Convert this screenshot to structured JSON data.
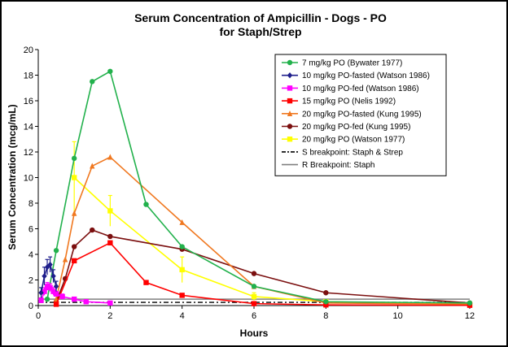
{
  "chart_data": {
    "type": "line",
    "title": "Serum Concentration  of Ampicillin  - Dogs - PO",
    "subtitle": "for Staph/Strep",
    "xlabel": "Hours",
    "ylabel": "Serum Concentration (mcg/mL)",
    "xlim": [
      0,
      12
    ],
    "ylim": [
      0,
      20
    ],
    "xticks": [
      0,
      2,
      4,
      6,
      8,
      10,
      12
    ],
    "yticks": [
      0,
      2,
      4,
      6,
      8,
      10,
      12,
      14,
      16,
      18,
      20
    ],
    "grid": false,
    "legend_position": "top-right",
    "series": [
      {
        "name": "7 mg/kg PO (Bywater 1977)",
        "color": "#22b14c",
        "marker": "circle",
        "x": [
          0.25,
          0.5,
          1,
          1.5,
          2,
          3,
          4,
          6,
          8,
          12
        ],
        "y": [
          0.5,
          4.3,
          11.5,
          17.5,
          18.3,
          7.9,
          4.6,
          1.5,
          0.3,
          0.2
        ]
      },
      {
        "name": "10 mg/kg PO-fasted (Watson 1986)",
        "color": "#1f1f8c",
        "marker": "diamond",
        "x": [
          0.08,
          0.17,
          0.25,
          0.33,
          0.42,
          0.5
        ],
        "y": [
          1.0,
          2.3,
          3.0,
          3.2,
          2.3,
          1.5
        ],
        "err": [
          0.4,
          0.7,
          0.6,
          0.6,
          0.5,
          0.4
        ]
      },
      {
        "name": "10 mg/kg PO-fed (Watson 1986)",
        "color": "#ff00ff",
        "marker": "square",
        "x": [
          0.08,
          0.17,
          0.25,
          0.33,
          0.42,
          0.5,
          0.67,
          1,
          1.33,
          2
        ],
        "y": [
          0.4,
          1.1,
          1.5,
          1.4,
          1.1,
          0.9,
          0.7,
          0.5,
          0.3,
          0.2
        ],
        "err": [
          0.2,
          0.3,
          0.3,
          0.3,
          0.3,
          0.2,
          0.2,
          0.1,
          0.1,
          0.1
        ]
      },
      {
        "name": "15 mg/kg PO (Nelis 1992)",
        "color": "#ff0000",
        "marker": "square",
        "x": [
          0.5,
          1,
          2,
          3,
          4,
          6,
          8,
          12
        ],
        "y": [
          0.1,
          3.5,
          4.9,
          1.8,
          0.8,
          0.15,
          0.05,
          0.02
        ]
      },
      {
        "name": "20 mg/kg PO-fasted (Kung 1995)",
        "color": "#f07820",
        "marker": "triangle",
        "x": [
          0.5,
          0.75,
          1,
          1.5,
          2,
          4,
          6,
          8,
          12
        ],
        "y": [
          0.5,
          3.6,
          7.2,
          10.9,
          11.6,
          6.5,
          1.5,
          0.2,
          0.1
        ]
      },
      {
        "name": "20 mg/kg PO-fed (Kung 1995)",
        "color": "#7b0f0f",
        "marker": "circle",
        "x": [
          0.5,
          0.75,
          1,
          1.5,
          2,
          4,
          6,
          8,
          12
        ],
        "y": [
          0.3,
          2.1,
          4.6,
          5.9,
          5.4,
          4.4,
          2.5,
          1.0,
          0.2
        ]
      },
      {
        "name": "20 mg/kg PO (Watson 1977)",
        "color": "#ffff00",
        "marker": "square",
        "x": [
          1,
          2,
          4,
          6,
          8,
          12
        ],
        "y": [
          10.0,
          7.4,
          2.8,
          0.7,
          0.3,
          0.1
        ],
        "err": [
          2.8,
          1.2,
          1.0,
          0.3,
          0.1,
          0.05
        ]
      },
      {
        "name": "S breakpoint: Staph & Strep",
        "color": "#000000",
        "style": "dash-dot",
        "x": [
          0,
          12
        ],
        "y": [
          0.25,
          0.25
        ]
      },
      {
        "name": "R Breakpoint: Staph",
        "color": "#7f7f7f",
        "style": "solid",
        "x": [
          0,
          12
        ],
        "y": [
          0.5,
          0.5
        ]
      }
    ]
  }
}
